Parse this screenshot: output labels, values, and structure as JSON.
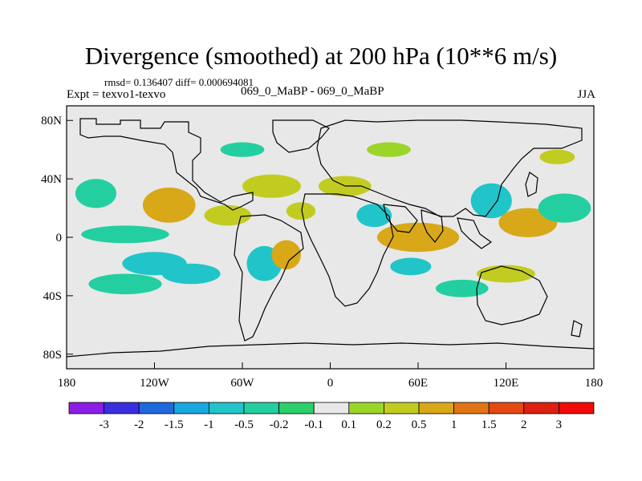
{
  "chart_data": {
    "type": "heatmap",
    "title": "Divergence (smoothed) at 200 hPa (10**6 m/s)",
    "stats": "rmsd= 0.136407 diff= 0.000694081",
    "left_label": "Expt = texvo1-texvo",
    "center_label": "069_0_MaBP - 069_0_MaBP",
    "right_label": "JJA",
    "x_ticks": [
      "180",
      "120W",
      "60W",
      "0",
      "60E",
      "120E",
      "180"
    ],
    "y_ticks": [
      "80N",
      "40N",
      "0",
      "40S",
      "80S"
    ],
    "x_range": [
      -180,
      180
    ],
    "y_range": [
      -90,
      90
    ],
    "colorbar": {
      "labels": [
        "-3",
        "-2",
        "-1.5",
        "-1",
        "-0.5",
        "-0.2",
        "-0.1",
        "0.1",
        "0.2",
        "0.5",
        "1",
        "1.5",
        "2",
        "3"
      ],
      "colors": [
        "#8b1ee6",
        "#3a2ee0",
        "#1f69dd",
        "#1aa6e0",
        "#21c5c9",
        "#23cfa0",
        "#2ccf6a",
        "#e8e8e8",
        "#9bd52a",
        "#c2cc20",
        "#d8a818",
        "#e27416",
        "#e24a12",
        "#de2010",
        "#f00a0a"
      ]
    },
    "blobs": [
      {
        "lon": -160,
        "lat": 30,
        "rlon": 14,
        "rlat": 10,
        "v": -0.3
      },
      {
        "lon": -110,
        "lat": 22,
        "rlon": 18,
        "rlat": 12,
        "v": 0.6
      },
      {
        "lon": -140,
        "lat": 2,
        "rlon": 30,
        "rlat": 6,
        "v": -0.3
      },
      {
        "lon": -120,
        "lat": -18,
        "rlon": 22,
        "rlat": 8,
        "v": -0.7
      },
      {
        "lon": -140,
        "lat": -32,
        "rlon": 25,
        "rlat": 7,
        "v": -0.3
      },
      {
        "lon": -95,
        "lat": -25,
        "rlon": 20,
        "rlat": 7,
        "v": -0.6
      },
      {
        "lon": -45,
        "lat": -18,
        "rlon": 12,
        "rlat": 12,
        "v": -0.8
      },
      {
        "lon": -30,
        "lat": -12,
        "rlon": 10,
        "rlat": 10,
        "v": 0.6
      },
      {
        "lon": -40,
        "lat": 35,
        "rlon": 20,
        "rlat": 8,
        "v": 0.5
      },
      {
        "lon": -70,
        "lat": 15,
        "rlon": 16,
        "rlat": 7,
        "v": 0.5
      },
      {
        "lon": -20,
        "lat": 18,
        "rlon": 10,
        "rlat": 6,
        "v": 0.3
      },
      {
        "lon": 10,
        "lat": 35,
        "rlon": 18,
        "rlat": 7,
        "v": 0.4
      },
      {
        "lon": 30,
        "lat": 15,
        "rlon": 12,
        "rlat": 8,
        "v": -0.6
      },
      {
        "lon": 60,
        "lat": 0,
        "rlon": 28,
        "rlat": 10,
        "v": 1.0
      },
      {
        "lon": 55,
        "lat": -20,
        "rlon": 14,
        "rlat": 6,
        "v": -0.5
      },
      {
        "lon": 110,
        "lat": 25,
        "rlon": 14,
        "rlat": 12,
        "v": -0.7
      },
      {
        "lon": 135,
        "lat": 10,
        "rlon": 20,
        "rlat": 10,
        "v": 0.6
      },
      {
        "lon": 160,
        "lat": 20,
        "rlon": 18,
        "rlat": 10,
        "v": -0.4
      },
      {
        "lon": 120,
        "lat": -25,
        "rlon": 20,
        "rlat": 6,
        "v": 0.4
      },
      {
        "lon": 90,
        "lat": -35,
        "rlon": 18,
        "rlat": 6,
        "v": -0.4
      },
      {
        "lon": 40,
        "lat": 60,
        "rlon": 15,
        "rlat": 5,
        "v": 0.2
      },
      {
        "lon": -60,
        "lat": 60,
        "rlon": 15,
        "rlat": 5,
        "v": -0.2
      },
      {
        "lon": 155,
        "lat": 55,
        "rlon": 12,
        "rlat": 5,
        "v": 0.3
      }
    ]
  }
}
